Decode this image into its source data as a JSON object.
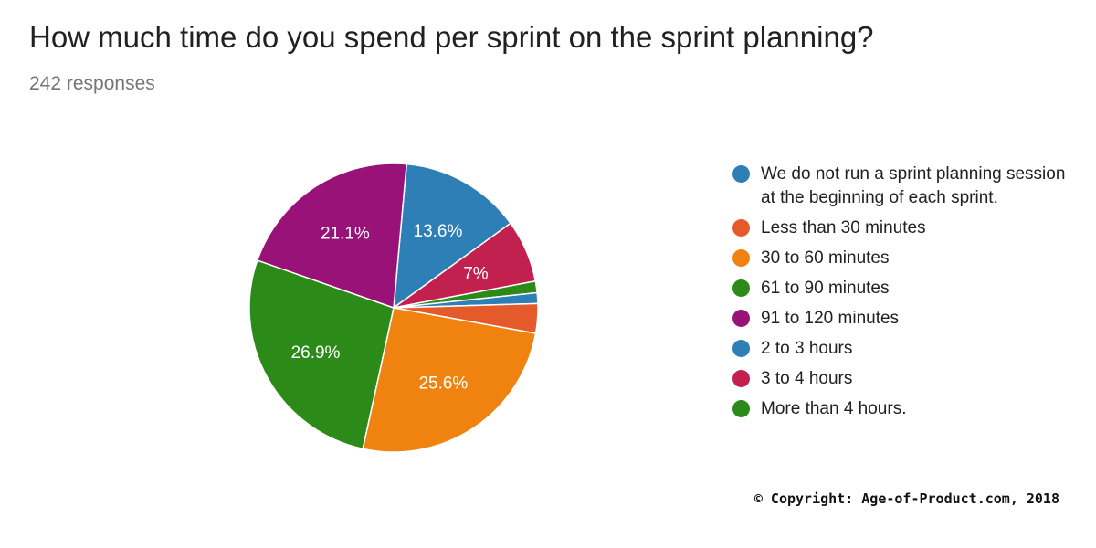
{
  "chart_data": {
    "type": "pie",
    "title": "How much time do you spend per sprint on the sprint planning?",
    "subtitle": "242 responses",
    "slices": [
      {
        "name": "We do not run a sprint planning session at the beginning of each sprint.",
        "value": 13.6,
        "label": "13.6%",
        "color": "#2e7fb6"
      },
      {
        "name": "Less than 30 minutes",
        "value": 3.3,
        "label": "",
        "color": "#e55a2b"
      },
      {
        "name": "30 to 60 minutes",
        "value": 25.6,
        "label": "25.6%",
        "color": "#f0830f"
      },
      {
        "name": "61 to 90 minutes",
        "value": 26.9,
        "label": "26.9%",
        "color": "#2b8a18"
      },
      {
        "name": "91 to 120 minutes",
        "value": 21.1,
        "label": "21.1%",
        "color": "#991277"
      },
      {
        "name": "2 to 3 hours",
        "value": 1.2,
        "label": "",
        "color": "#2e7fb6"
      },
      {
        "name": "3 to 4 hours",
        "value": 7,
        "label": "7%",
        "color": "#c2204f"
      },
      {
        "name": "More than 4 hours.",
        "value": 1.3,
        "label": "",
        "color": "#2b8a18"
      }
    ],
    "slice_order": [
      0,
      6,
      7,
      5,
      1,
      2,
      3,
      4
    ],
    "legend_position": "right"
  },
  "copyright": "© Copyright: Age-of-Product.com, 2018"
}
